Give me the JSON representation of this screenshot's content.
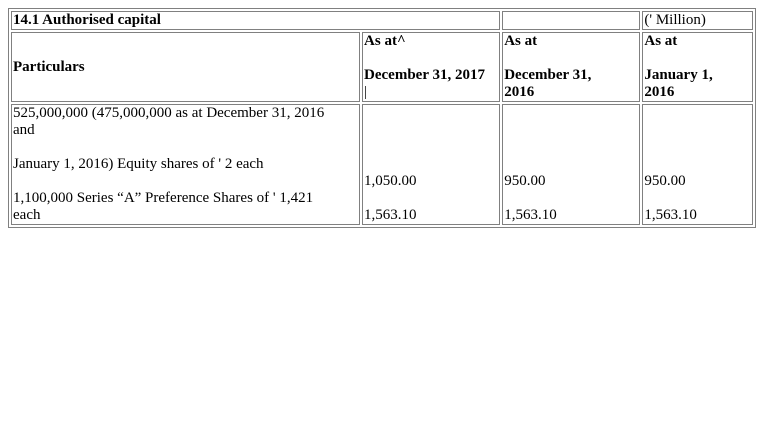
{
  "section": {
    "title": "14.1 Authorised capital",
    "unit": "(' Million)"
  },
  "header": {
    "particulars": "Particulars",
    "col1_line1": "As at^",
    "col1_line2": "December 31, 2017",
    "col1_cursor": "|",
    "col2_line1": "As at",
    "col2_line2": "December 31,",
    "col2_line3": "2016",
    "col3_line1": "As at",
    "col3_line2": "January 1,",
    "col3_line3": "2016"
  },
  "rows": {
    "equity": {
      "desc_line1": "525,000,000 (475,000,000 as at December 31, 2016",
      "desc_line2": "and",
      "desc_line3": "January 1, 2016) Equity shares of ' 2 each",
      "val_2017": "1,050.00",
      "val_2016": "950.00",
      "val_jan2016": "950.00"
    },
    "preference": {
      "desc_line1": "1,100,000 Series “A” Preference Shares of ' 1,421",
      "desc_line2": "each",
      "val_2017": "1,563.10",
      "val_2016": "1,563.10",
      "val_jan2016": "1,563.10"
    }
  }
}
